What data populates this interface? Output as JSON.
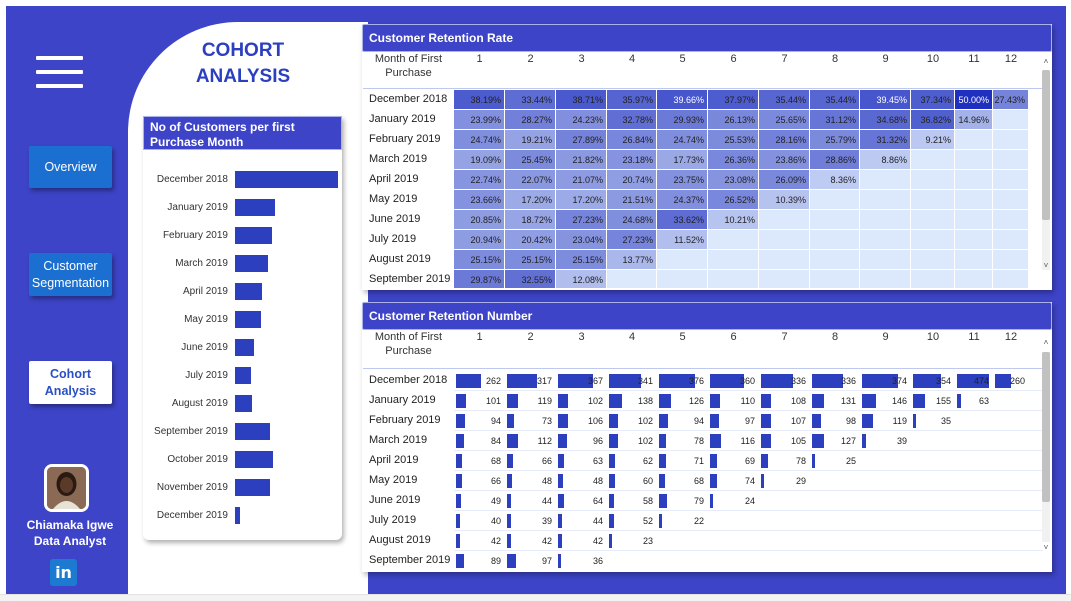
{
  "nav": {
    "overview": "Overview",
    "segmentation_line1": "Customer",
    "segmentation_line2": "Segmentation",
    "cohort_line1": "Cohort",
    "cohort_line2": "Analysis"
  },
  "page_title": {
    "line1": "COHORT",
    "line2": "ANALYSIS"
  },
  "author": {
    "name": "Chiamaka Igwe",
    "role": "Data Analyst",
    "linkedin_label": "in"
  },
  "customers_chart": {
    "title_line1": "No of Customers per first",
    "title_line2": "Purchase Month",
    "color": "#2b3fbf"
  },
  "chart_data": {
    "type": "bar",
    "title": "No of Customers per first Purchase Month",
    "orientation": "horizontal",
    "categories": [
      "December 2018",
      "January 2019",
      "February 2019",
      "March 2019",
      "April 2019",
      "May 2019",
      "June 2019",
      "July 2019",
      "August 2019",
      "September 2019",
      "October 2019",
      "November 2019",
      "December 2019"
    ],
    "values": [
      262,
      101,
      94,
      84,
      68,
      66,
      49,
      40,
      42,
      89,
      97,
      89,
      12
    ]
  },
  "retention_rate": {
    "title": "Customer Retention Rate",
    "first_col_line1": "Month of First",
    "first_col_line2": "Purchase",
    "columns": [
      "1",
      "2",
      "3",
      "4",
      "5",
      "6",
      "7",
      "8",
      "9",
      "10",
      "11",
      "12"
    ],
    "rows": [
      {
        "label": "December 2018",
        "values": [
          "38.19%",
          "33.44%",
          "38.71%",
          "35.97%",
          "39.66%",
          "37.97%",
          "35.44%",
          "35.44%",
          "39.45%",
          "37.34%",
          "50.00%",
          "27.43%"
        ]
      },
      {
        "label": "January 2019",
        "values": [
          "23.99%",
          "28.27%",
          "24.23%",
          "32.78%",
          "29.93%",
          "26.13%",
          "25.65%",
          "31.12%",
          "34.68%",
          "36.82%",
          "14.96%",
          ""
        ]
      },
      {
        "label": "February 2019",
        "values": [
          "24.74%",
          "19.21%",
          "27.89%",
          "26.84%",
          "24.74%",
          "25.53%",
          "28.16%",
          "25.79%",
          "31.32%",
          "9.21%",
          "",
          ""
        ]
      },
      {
        "label": "March 2019",
        "values": [
          "19.09%",
          "25.45%",
          "21.82%",
          "23.18%",
          "17.73%",
          "26.36%",
          "23.86%",
          "28.86%",
          "8.86%",
          "",
          "",
          ""
        ]
      },
      {
        "label": "April 2019",
        "values": [
          "22.74%",
          "22.07%",
          "21.07%",
          "20.74%",
          "23.75%",
          "23.08%",
          "26.09%",
          "8.36%",
          "",
          "",
          "",
          ""
        ]
      },
      {
        "label": "May 2019",
        "values": [
          "23.66%",
          "17.20%",
          "17.20%",
          "21.51%",
          "24.37%",
          "26.52%",
          "10.39%",
          "",
          "",
          "",
          "",
          ""
        ]
      },
      {
        "label": "June 2019",
        "values": [
          "20.85%",
          "18.72%",
          "27.23%",
          "24.68%",
          "33.62%",
          "10.21%",
          "",
          "",
          "",
          "",
          "",
          ""
        ]
      },
      {
        "label": "July 2019",
        "values": [
          "20.94%",
          "20.42%",
          "23.04%",
          "27.23%",
          "11.52%",
          "",
          "",
          "",
          "",
          "",
          "",
          ""
        ]
      },
      {
        "label": "August 2019",
        "values": [
          "25.15%",
          "25.15%",
          "25.15%",
          "13.77%",
          "",
          "",
          "",
          "",
          "",
          "",
          "",
          ""
        ]
      },
      {
        "label": "September 2019",
        "values": [
          "29.87%",
          "32.55%",
          "12.08%",
          "",
          "",
          "",
          "",
          "",
          "",
          "",
          "",
          ""
        ]
      }
    ],
    "color_low": "#dce8fb",
    "color_high": "#1f2fbf"
  },
  "retention_number": {
    "title": "Customer Retention Number",
    "first_col_line1": "Month of First",
    "first_col_line2": "Purchase",
    "columns": [
      "1",
      "2",
      "3",
      "4",
      "5",
      "6",
      "7",
      "8",
      "9",
      "10",
      "11",
      "12"
    ],
    "rows": [
      {
        "label": "December 2018",
        "values": [
          "262",
          "317",
          "367",
          "341",
          "376",
          "360",
          "336",
          "336",
          "374",
          "354",
          "474",
          "260"
        ]
      },
      {
        "label": "January 2019",
        "values": [
          "101",
          "119",
          "102",
          "138",
          "126",
          "110",
          "108",
          "131",
          "146",
          "155",
          "63",
          ""
        ]
      },
      {
        "label": "February 2019",
        "values": [
          "94",
          "73",
          "106",
          "102",
          "94",
          "97",
          "107",
          "98",
          "119",
          "35",
          "",
          ""
        ]
      },
      {
        "label": "March 2019",
        "values": [
          "84",
          "112",
          "96",
          "102",
          "78",
          "116",
          "105",
          "127",
          "39",
          "",
          "",
          ""
        ]
      },
      {
        "label": "April 2019",
        "values": [
          "68",
          "66",
          "63",
          "62",
          "71",
          "69",
          "78",
          "25",
          "",
          "",
          "",
          ""
        ]
      },
      {
        "label": "May 2019",
        "values": [
          "66",
          "48",
          "48",
          "60",
          "68",
          "74",
          "29",
          "",
          "",
          "",
          "",
          ""
        ]
      },
      {
        "label": "June 2019",
        "values": [
          "49",
          "44",
          "64",
          "58",
          "79",
          "24",
          "",
          "",
          "",
          "",
          "",
          ""
        ]
      },
      {
        "label": "July 2019",
        "values": [
          "40",
          "39",
          "44",
          "52",
          "22",
          "",
          "",
          "",
          "",
          "",
          "",
          ""
        ]
      },
      {
        "label": "August 2019",
        "values": [
          "42",
          "42",
          "42",
          "23",
          "",
          "",
          "",
          "",
          "",
          "",
          "",
          ""
        ]
      },
      {
        "label": "September 2019",
        "values": [
          "89",
          "97",
          "36",
          "",
          "",
          "",
          "",
          "",
          "",
          "",
          "",
          ""
        ]
      }
    ],
    "bar_color": "#2b3fbf"
  }
}
